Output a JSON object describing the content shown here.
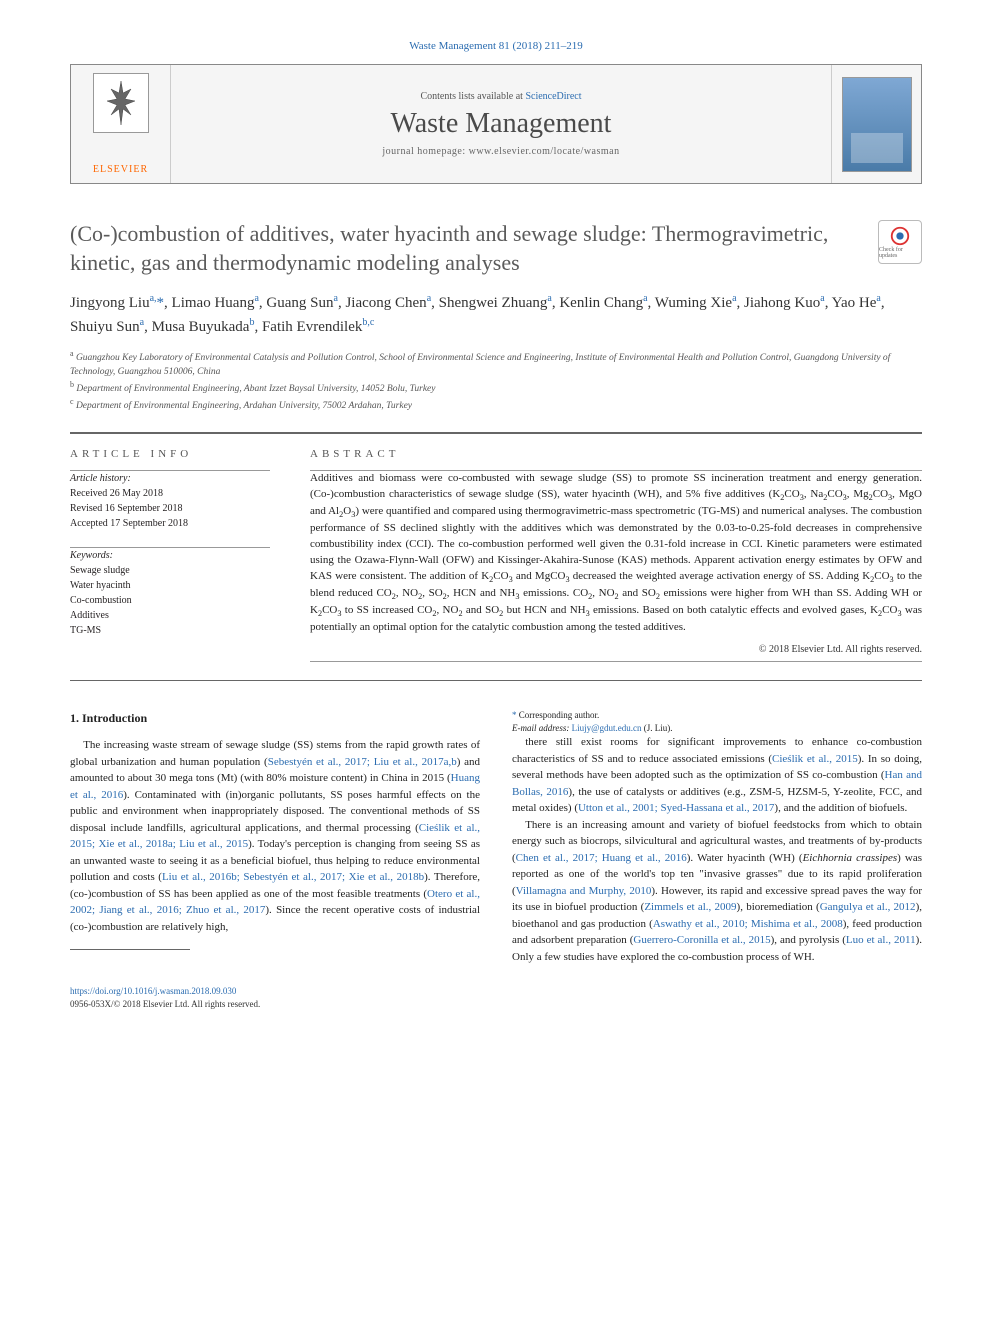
{
  "journal_ref": "Waste Management 81 (2018) 211–219",
  "header": {
    "contents_prefix": "Contents lists available at ",
    "contents_link": "ScienceDirect",
    "journal_name": "Waste Management",
    "homepage_prefix": "journal homepage: ",
    "homepage_url": "www.elsevier.com/locate/wasman",
    "publisher_label": "ELSEVIER"
  },
  "title": "(Co-)combustion of additives, water hyacinth and sewage sludge: Thermogravimetric, kinetic, gas and thermodynamic modeling analyses",
  "check_label": "Check for updates",
  "authors_html": "Jingyong Liu<sup>a,</sup><span class='corr'>*</span>, Limao Huang<sup>a</sup>, Guang Sun<sup>a</sup>, Jiacong Chen<sup>a</sup>, Shengwei Zhuang<sup>a</sup>, Kenlin Chang<sup>a</sup>, Wuming Xie<sup>a</sup>, Jiahong Kuo<sup>a</sup>, Yao He<sup>a</sup>, Shuiyu Sun<sup>a</sup>, Musa Buyukada<sup>b</sup>, Fatih Evrendilek<sup>b,c</sup>",
  "affiliations": {
    "a": "Guangzhou Key Laboratory of Environmental Catalysis and Pollution Control, School of Environmental Science and Engineering, Institute of Environmental Health and Pollution Control, Guangdong University of Technology, Guangzhou 510006, China",
    "b": "Department of Environmental Engineering, Abant Izzet Baysal University, 14052 Bolu, Turkey",
    "c": "Department of Environmental Engineering, Ardahan University, 75002 Ardahan, Turkey"
  },
  "article_info": {
    "heading": "ARTICLE INFO",
    "history_label": "Article history:",
    "received": "Received 26 May 2018",
    "revised": "Revised 16 September 2018",
    "accepted": "Accepted 17 September 2018",
    "keywords_label": "Keywords:",
    "keywords": [
      "Sewage sludge",
      "Water hyacinth",
      "Co-combustion",
      "Additives",
      "TG-MS"
    ]
  },
  "abstract": {
    "heading": "ABSTRACT",
    "text_html": "Additives and biomass were co-combusted with sewage sludge (SS) to promote SS incineration treatment and energy generation. (Co-)combustion characteristics of sewage sludge (SS), water hyacinth (WH), and 5% five additives (K<sub>2</sub>CO<sub>3</sub>, Na<sub>2</sub>CO<sub>3</sub>, Mg<sub>2</sub>CO<sub>3</sub>, MgO and Al<sub>2</sub>O<sub>3</sub>) were quantified and compared using thermogravimetric-mass spectrometric (TG-MS) and numerical analyses. The combustion performance of SS declined slightly with the additives which was demonstrated by the 0.03-to-0.25-fold decreases in comprehensive combustibility index (CCI). The co-combustion performed well given the 0.31-fold increase in CCI. Kinetic parameters were estimated using the Ozawa-Flynn-Wall (OFW) and Kissinger-Akahira-Sunose (KAS) methods. Apparent activation energy estimates by OFW and KAS were consistent. The addition of K<sub>2</sub>CO<sub>3</sub> and MgCO<sub>3</sub> decreased the weighted average activation energy of SS. Adding K<sub>2</sub>CO<sub>3</sub> to the blend reduced CO<sub>2</sub>, NO<sub>2</sub>, SO<sub>2</sub>, HCN and NH<sub>3</sub> emissions. CO<sub>2</sub>, NO<sub>2</sub> and SO<sub>2</sub> emissions were higher from WH than SS. Adding WH or K<sub>2</sub>CO<sub>3</sub> to SS increased CO<sub>2</sub>, NO<sub>2</sub> and SO<sub>2</sub> but HCN and NH<sub>3</sub> emissions. Based on both catalytic effects and evolved gases, K<sub>2</sub>CO<sub>3</sub> was potentially an optimal option for the catalytic combustion among the tested additives.",
    "copyright": "© 2018 Elsevier Ltd. All rights reserved."
  },
  "section1": {
    "heading": "1. Introduction",
    "p1_html": "The increasing waste stream of sewage sludge (SS) stems from the rapid growth rates of global urbanization and human population (<span class='cite'>Sebestyén et al., 2017; Liu et al., 2017a,b</span>) and amounted to about 30 mega tons (Mt) (with 80% moisture content) in China in 2015 (<span class='cite'>Huang et al., 2016</span>). Contaminated with (in)organic pollutants, SS poses harmful effects on the public and environment when inappropriately disposed. The conventional methods of SS disposal include landfills, agricultural applications, and thermal processing (<span class='cite'>Cieślik et al., 2015; Xie et al., 2018a; Liu et al., 2015</span>). Today's perception is changing from seeing SS as an unwanted waste to seeing it as a beneficial biofuel, thus helping to reduce environmental pollution and costs (<span class='cite'>Liu et al., 2016b; Sebestyén et al., 2017; Xie et al., 2018b</span>). Therefore, (co-)combustion of SS has been applied as one of the most feasible treatments (<span class='cite'>Otero et al., 2002; Jiang et al., 2016; Zhuo et al., 2017</span>). Since the recent operative costs of industrial (co-)combustion are relatively high,",
    "p2_html": "there still exist rooms for significant improvements to enhance co-combustion characteristics of SS and to reduce associated emissions (<span class='cite'>Cieślik et al., 2015</span>). In so doing, several methods have been adopted such as the optimization of SS co-combustion (<span class='cite'>Han and Bollas, 2016</span>), the use of catalysts or additives (e.g., ZSM-5, HZSM-5, Y-zeolite, FCC, and metal oxides) (<span class='cite'>Utton et al., 2001; Syed-Hassana et al., 2017</span>), and the addition of biofuels.",
    "p3_html": "There is an increasing amount and variety of biofuel feedstocks from which to obtain energy such as biocrops, silvicultural and agricultural wastes, and treatments of by-products (<span class='cite'>Chen et al., 2017; Huang et al., 2016</span>). Water hyacinth (WH) (<i>Eichhornia crassipes</i>) was reported as one of the world's top ten \"invasive grasses\" due to its rapid proliferation (<span class='cite'>Villamagna and Murphy, 2010</span>). However, its rapid and excessive spread paves the way for its use in biofuel production (<span class='cite'>Zimmels et al., 2009</span>), bioremediation (<span class='cite'>Gangulya et al., 2012</span>), bioethanol and gas production (<span class='cite'>Aswathy et al., 2010; Mishima et al., 2008</span>), feed production and adsorbent preparation (<span class='cite'>Guerrero-Coronilla et al., 2015</span>), and pyrolysis (<span class='cite'>Luo et al., 2011</span>). Only a few studies have explored the co-combustion process of WH."
  },
  "footnotes": {
    "corr_label": "Corresponding author.",
    "email_label": "E-mail address:",
    "email": "Liujy@gdut.edu.cn",
    "email_who": "(J. Liu)."
  },
  "bottom": {
    "doi": "https://doi.org/10.1016/j.wasman.2018.09.030",
    "issn_line": "0956-053X/© 2018 Elsevier Ltd. All rights reserved."
  },
  "colors": {
    "link": "#2b6cb0",
    "publisher": "#ff6600",
    "text": "#231f20",
    "rule": "#666666"
  }
}
